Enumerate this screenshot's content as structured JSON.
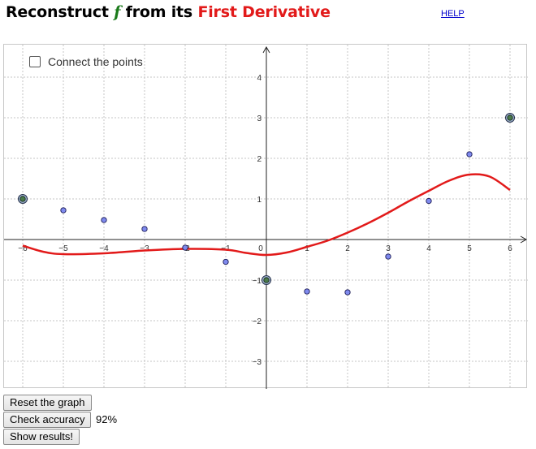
{
  "header": {
    "title_part1": "Reconstruct",
    "title_f": "f",
    "title_part2": "from its",
    "title_red": "First Derivative",
    "help_link": "HELP"
  },
  "graph": {
    "checkbox_label": "Connect the points",
    "checkbox_checked": false
  },
  "buttons": {
    "reset": "Reset the graph",
    "check": "Check accuracy",
    "show": "Show results!"
  },
  "accuracy_value": "92%",
  "colors": {
    "curve": "#e21a1a",
    "point_fill": "#7f8aee",
    "anchor_fill": "#4a7a4a",
    "title_red": "#e21a1a",
    "title_f": "#1a7a1a"
  },
  "chart_data": {
    "type": "scatter",
    "title": "",
    "xlabel": "",
    "ylabel": "",
    "xlim": [
      -6.4,
      6.4
    ],
    "ylim": [
      -3.7,
      4.8
    ],
    "x_ticks": [
      "−6",
      "−5",
      "−4",
      "−3",
      "−2",
      "−1",
      "0",
      "1",
      "2",
      "3",
      "4",
      "5",
      "6"
    ],
    "y_ticks": [
      "4",
      "3",
      "2",
      "1",
      "−1",
      "−2",
      "−3"
    ],
    "grid": true,
    "points": [
      {
        "x": -5,
        "y": 0.72
      },
      {
        "x": -4,
        "y": 0.48
      },
      {
        "x": -3,
        "y": 0.26
      },
      {
        "x": -2,
        "y": -0.2
      },
      {
        "x": -1,
        "y": -0.55
      },
      {
        "x": 1,
        "y": -1.28
      },
      {
        "x": 2,
        "y": -1.3
      },
      {
        "x": 3,
        "y": -0.42
      },
      {
        "x": 4,
        "y": 0.95
      },
      {
        "x": 5,
        "y": 2.1
      }
    ],
    "anchor_points": [
      {
        "x": -6,
        "y": 1
      },
      {
        "x": 0,
        "y": -1
      },
      {
        "x": 6,
        "y": 3
      }
    ],
    "derivative_curve": [
      {
        "x": -6,
        "y": -0.15
      },
      {
        "x": -5.5,
        "y": -0.3
      },
      {
        "x": -5,
        "y": -0.36
      },
      {
        "x": -4,
        "y": -0.34
      },
      {
        "x": -3,
        "y": -0.27
      },
      {
        "x": -2,
        "y": -0.23
      },
      {
        "x": -1,
        "y": -0.25
      },
      {
        "x": -0.5,
        "y": -0.33
      },
      {
        "x": 0,
        "y": -0.38
      },
      {
        "x": 0.5,
        "y": -0.32
      },
      {
        "x": 1,
        "y": -0.18
      },
      {
        "x": 1.5,
        "y": -0.03
      },
      {
        "x": 2,
        "y": 0.17
      },
      {
        "x": 2.5,
        "y": 0.4
      },
      {
        "x": 3,
        "y": 0.66
      },
      {
        "x": 3.5,
        "y": 0.94
      },
      {
        "x": 4,
        "y": 1.2
      },
      {
        "x": 4.5,
        "y": 1.45
      },
      {
        "x": 5,
        "y": 1.6
      },
      {
        "x": 5.5,
        "y": 1.55
      },
      {
        "x": 6,
        "y": 1.22
      }
    ]
  }
}
